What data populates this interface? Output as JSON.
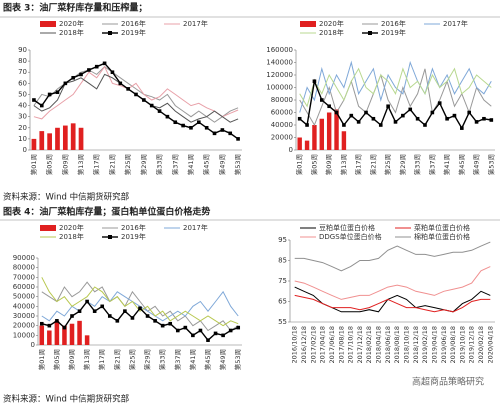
{
  "header3": "图表 3：油厂菜籽库存量和压榨量；",
  "source1": "资料来源：Wind 中信期货研究部",
  "header4": "图表 4：油厂菜粕库存量；蛋白粕单位蛋白价格走势",
  "source2": "资料来源：Wind 中信期货研究部",
  "watermark": "高超商品策略研究",
  "chart_data": [
    {
      "type": "combo",
      "ylim": [
        0,
        90
      ],
      "yticks": [
        0,
        10,
        20,
        30,
        40,
        50,
        60,
        70,
        80,
        90
      ],
      "categories": [
        "第01周",
        null,
        "第05周",
        null,
        "第09周",
        null,
        "第13周",
        null,
        "第17周",
        null,
        "第21周",
        null,
        "第25周",
        null,
        "第29周",
        null,
        "第33周",
        null,
        "第37周",
        null,
        "第41周",
        null,
        "第45周",
        null,
        "第49周",
        null,
        "第53周"
      ],
      "series": [
        {
          "name": "2020年",
          "type": "bar",
          "color": "#e02020",
          "values": [
            10,
            17,
            15,
            20,
            22,
            24,
            20,
            null,
            null,
            null,
            null,
            null,
            null,
            null,
            null,
            null,
            null,
            null,
            null,
            null,
            null,
            null,
            null,
            null,
            null,
            null,
            null
          ]
        },
        {
          "name": "2016年",
          "type": "line",
          "color": "#999999",
          "values": [
            40,
            50,
            48,
            55,
            60,
            65,
            70,
            72,
            68,
            75,
            70,
            65,
            60,
            55,
            50,
            48,
            45,
            50,
            40,
            35,
            30,
            35,
            30,
            25,
            30,
            35,
            38
          ]
        },
        {
          "name": "2017年",
          "type": "line",
          "color": "#e8a0a8",
          "values": [
            30,
            28,
            35,
            40,
            45,
            50,
            60,
            70,
            65,
            75,
            60,
            58,
            55,
            60,
            50,
            45,
            48,
            55,
            50,
            45,
            40,
            42,
            38,
            35,
            30,
            33,
            36
          ]
        },
        {
          "name": "2018年",
          "type": "line",
          "color": "#555555",
          "values": [
            40,
            35,
            38,
            45,
            60,
            62,
            65,
            60,
            55,
            68,
            65,
            60,
            55,
            50,
            45,
            40,
            38,
            42,
            35,
            30,
            25,
            28,
            30,
            35,
            30,
            25,
            28
          ]
        },
        {
          "name": "2019年",
          "type": "line",
          "marker": "square",
          "color": "#000000",
          "values": [
            45,
            40,
            50,
            52,
            60,
            65,
            68,
            72,
            75,
            78,
            70,
            60,
            55,
            50,
            45,
            40,
            35,
            30,
            25,
            22,
            20,
            25,
            20,
            15,
            18,
            15,
            10
          ]
        }
      ]
    },
    {
      "type": "combo",
      "ylim": [
        0,
        160000
      ],
      "yticks": [
        0,
        20000,
        40000,
        60000,
        80000,
        100000,
        120000,
        140000,
        160000
      ],
      "categories": [
        "第01周",
        null,
        "第05周",
        null,
        "第09周",
        null,
        "第13周",
        null,
        "第17周",
        null,
        "第21周",
        null,
        "第25周",
        null,
        "第29周",
        null,
        "第33周",
        null,
        "第37周",
        null,
        "第41周",
        null,
        "第45周",
        null,
        "第49周",
        null,
        "第53周"
      ],
      "series": [
        {
          "name": "2020年",
          "type": "bar",
          "color": "#e02020",
          "values": [
            20000,
            15000,
            40000,
            50000,
            60000,
            65000,
            30000,
            null,
            null,
            null,
            null,
            null,
            null,
            null,
            null,
            null,
            null,
            null,
            null,
            null,
            null,
            null,
            null,
            null,
            null,
            null,
            null
          ]
        },
        {
          "name": "2016年",
          "type": "line",
          "color": "#999999",
          "values": [
            80000,
            60000,
            40000,
            70000,
            100000,
            60000,
            80000,
            110000,
            70000,
            60000,
            90000,
            120000,
            80000,
            60000,
            100000,
            70000,
            90000,
            130000,
            60000,
            80000,
            110000,
            70000,
            90000,
            60000,
            100000,
            80000,
            70000
          ]
        },
        {
          "name": "2017年",
          "type": "line",
          "color": "#7fa8d8",
          "values": [
            60000,
            100000,
            80000,
            130000,
            90000,
            120000,
            100000,
            140000,
            90000,
            110000,
            130000,
            80000,
            120000,
            100000,
            90000,
            140000,
            110000,
            90000,
            130000,
            100000,
            120000,
            90000,
            110000,
            130000,
            100000,
            90000,
            110000
          ]
        },
        {
          "name": "2018年",
          "type": "line",
          "color": "#b8d890",
          "values": [
            90000,
            70000,
            110000,
            90000,
            120000,
            100000,
            80000,
            110000,
            130000,
            100000,
            90000,
            120000,
            110000,
            90000,
            130000,
            100000,
            110000,
            90000,
            120000,
            100000,
            110000,
            130000,
            90000,
            100000,
            120000,
            110000,
            100000
          ]
        },
        {
          "name": "2019年",
          "type": "line",
          "marker": "square",
          "color": "#000000",
          "values": [
            50000,
            40000,
            110000,
            80000,
            70000,
            60000,
            40000,
            55000,
            45000,
            60000,
            50000,
            40000,
            70000,
            45000,
            55000,
            65000,
            50000,
            40000,
            60000,
            75000,
            50000,
            55000,
            35000,
            60000,
            45000,
            50000,
            48000
          ]
        }
      ]
    },
    {
      "type": "combo",
      "ylim": [
        0,
        90000
      ],
      "yticks": [
        0,
        10000,
        20000,
        30000,
        40000,
        50000,
        60000,
        70000,
        80000,
        90000
      ],
      "categories": [
        "第01周",
        null,
        "第05周",
        null,
        "第09周",
        null,
        "第13周",
        null,
        "第17周",
        null,
        "第21周",
        null,
        "第25周",
        null,
        "第29周",
        null,
        "第33周",
        null,
        "第37周",
        null,
        "第41周",
        null,
        "第45周",
        null,
        "第49周",
        null,
        "第53周"
      ],
      "series": [
        {
          "name": "2020年",
          "type": "bar",
          "color": "#e02020",
          "values": [
            20000,
            15000,
            25000,
            20000,
            22000,
            25000,
            10000,
            null,
            null,
            null,
            null,
            null,
            null,
            null,
            null,
            null,
            null,
            null,
            null,
            null,
            null,
            null,
            null,
            null,
            null,
            null,
            null
          ]
        },
        {
          "name": "2016年",
          "type": "line",
          "color": "#999999",
          "values": [
            55000,
            50000,
            45000,
            60000,
            50000,
            55000,
            65000,
            55000,
            60000,
            45000,
            50000,
            40000,
            55000,
            45000,
            35000,
            40000,
            30000,
            35000,
            25000,
            30000,
            20000,
            25000,
            15000,
            20000,
            25000,
            15000,
            20000
          ]
        },
        {
          "name": "2017年",
          "type": "line",
          "color": "#7fa8d8",
          "values": [
            30000,
            25000,
            35000,
            30000,
            40000,
            35000,
            45000,
            40000,
            50000,
            45000,
            55000,
            50000,
            45000,
            40000,
            35000,
            30000,
            25000,
            30000,
            35000,
            30000,
            40000,
            45000,
            35000,
            45000,
            55000,
            40000,
            30000
          ]
        },
        {
          "name": "2018年",
          "type": "line",
          "color": "#b8c850",
          "values": [
            70000,
            55000,
            45000,
            50000,
            40000,
            45000,
            50000,
            60000,
            55000,
            45000,
            50000,
            40000,
            45000,
            35000,
            40000,
            30000,
            35000,
            25000,
            30000,
            35000,
            30000,
            25000,
            30000,
            25000,
            20000,
            25000,
            22000
          ]
        },
        {
          "name": "2019年",
          "type": "line",
          "marker": "square",
          "color": "#000000",
          "values": [
            22000,
            20000,
            25000,
            18000,
            30000,
            35000,
            45000,
            35000,
            40000,
            30000,
            25000,
            35000,
            28000,
            38000,
            30000,
            25000,
            20000,
            22000,
            15000,
            18000,
            10000,
            15000,
            5000,
            12000,
            10000,
            15000,
            18000
          ]
        }
      ]
    },
    {
      "type": "line",
      "ylim": [
        55,
        95
      ],
      "yticks": [
        55,
        65,
        75,
        85,
        95
      ],
      "categories": [
        "2016/10/18",
        "2016/12/18",
        "2017/02/18",
        "2017/04/18",
        "2017/06/18",
        "2017/08/18",
        "2017/10/18",
        "2017/12/18",
        "2018/02/18",
        "2018/04/18",
        "2018/06/18",
        "2018/08/18",
        "2018/10/18",
        "2018/12/18",
        "2019/02/18",
        "2019/04/18",
        "2019/06/18",
        "2019/08/18",
        "2019/10/18",
        "2019/12/18",
        "2020/02/18",
        "2020/04/18"
      ],
      "series": [
        {
          "name": "豆粕单位蛋白价格",
          "color": "#000000",
          "values": [
            72,
            70,
            68,
            64,
            62,
            60,
            60,
            60,
            61,
            60,
            66,
            68,
            66,
            62,
            63,
            62,
            61,
            60,
            64,
            66,
            70,
            68
          ]
        },
        {
          "name": "菜粕单位蛋白价格",
          "color": "#e02020",
          "values": [
            68,
            67,
            66,
            64,
            62,
            62,
            62,
            61,
            62,
            64,
            66,
            64,
            62,
            62,
            61,
            60,
            61,
            60,
            62,
            65,
            66,
            66
          ]
        },
        {
          "name": "DDGS单位蛋白价格",
          "color": "#f09090",
          "values": [
            75,
            74,
            72,
            70,
            68,
            66,
            67,
            68,
            68,
            70,
            72,
            73,
            72,
            70,
            69,
            68,
            70,
            71,
            72,
            74,
            80,
            82
          ]
        },
        {
          "name": "棉粕单位蛋白价格",
          "color": "#909090",
          "values": [
            86,
            86,
            85,
            84,
            82,
            80,
            82,
            85,
            85,
            86,
            90,
            92,
            90,
            88,
            88,
            87,
            88,
            89,
            89,
            90,
            92,
            94
          ]
        }
      ]
    }
  ]
}
